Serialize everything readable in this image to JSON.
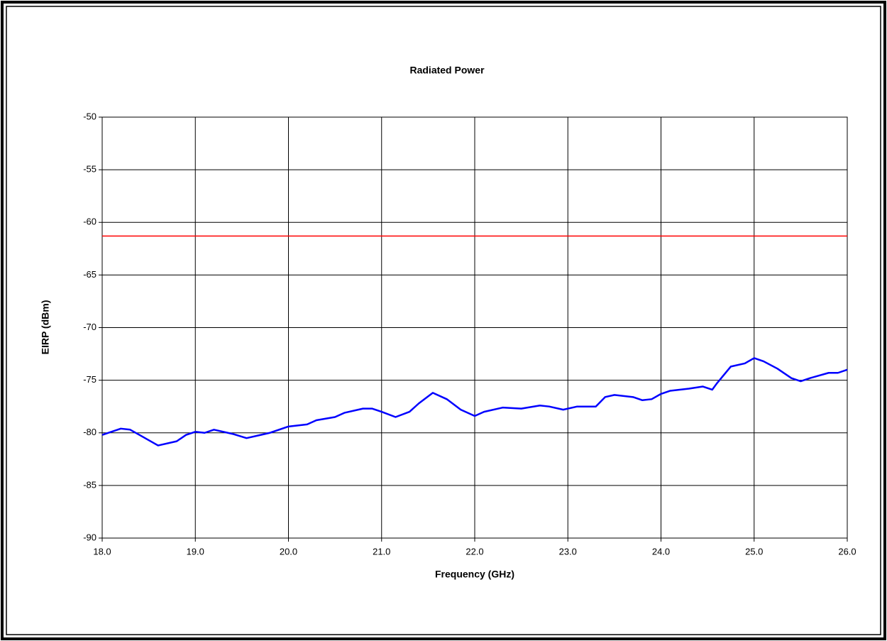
{
  "chart_data": {
    "type": "line",
    "title": "Radiated Power",
    "x_label": "Frequency (GHz)",
    "y_label": "EIRP (dBm)",
    "xlim": [
      18,
      26
    ],
    "xticks": [
      {
        "value": 18,
        "label": "18.0"
      },
      {
        "value": 19,
        "label": "19.0"
      },
      {
        "value": 20,
        "label": "20.0"
      },
      {
        "value": 21,
        "label": "21.0"
      },
      {
        "value": 22,
        "label": "22.0"
      },
      {
        "value": 23,
        "label": "23.0"
      },
      {
        "value": 24,
        "label": "24.0"
      },
      {
        "value": 25,
        "label": "25.0"
      },
      {
        "value": 26,
        "label": "26.0"
      }
    ],
    "ylim": [
      -90,
      -50
    ],
    "yticks": [
      -90,
      -85,
      -80,
      -75,
      -70,
      -65,
      -60,
      -55,
      -50
    ],
    "grid": true,
    "series": [
      {
        "color": "#0000ff",
        "x": [
          18.0,
          18.2,
          18.3,
          18.4,
          18.6,
          18.8,
          18.9,
          19.0,
          19.1,
          19.2,
          19.4,
          19.55,
          19.7,
          19.8,
          20.0,
          20.2,
          20.3,
          20.5,
          20.6,
          20.8,
          20.9,
          21.0,
          21.15,
          21.3,
          21.4,
          21.55,
          21.7,
          21.85,
          22.0,
          22.1,
          22.3,
          22.5,
          22.7,
          22.8,
          22.95,
          23.1,
          23.3,
          23.4,
          23.5,
          23.7,
          23.8,
          23.9,
          24.0,
          24.1,
          24.3,
          24.45,
          24.55,
          24.6,
          24.75,
          24.9,
          25.0,
          25.1,
          25.25,
          25.4,
          25.5,
          25.6,
          25.8,
          25.9,
          26.0
        ],
        "values": [
          -80.2,
          -79.6,
          -79.7,
          -80.2,
          -81.2,
          -80.8,
          -80.2,
          -79.9,
          -80.0,
          -79.7,
          -80.1,
          -80.5,
          -80.2,
          -80.0,
          -79.4,
          -79.2,
          -78.8,
          -78.5,
          -78.1,
          -77.7,
          -77.7,
          -78.0,
          -78.5,
          -78.0,
          -77.2,
          -76.2,
          -76.8,
          -77.8,
          -78.4,
          -78.0,
          -77.6,
          -77.7,
          -77.4,
          -77.5,
          -77.8,
          -77.5,
          -77.5,
          -76.6,
          -76.4,
          -76.6,
          -76.9,
          -76.8,
          -76.3,
          -76.0,
          -75.8,
          -75.6,
          -75.9,
          -75.3,
          -73.7,
          -73.4,
          -72.9,
          -73.2,
          -73.9,
          -74.8,
          -75.1,
          -74.8,
          -74.3,
          -74.3,
          -74.0
        ]
      },
      {
        "color": "#ff0000",
        "x": [
          18,
          26
        ],
        "values": [
          -61.3,
          -61.3
        ]
      }
    ]
  }
}
